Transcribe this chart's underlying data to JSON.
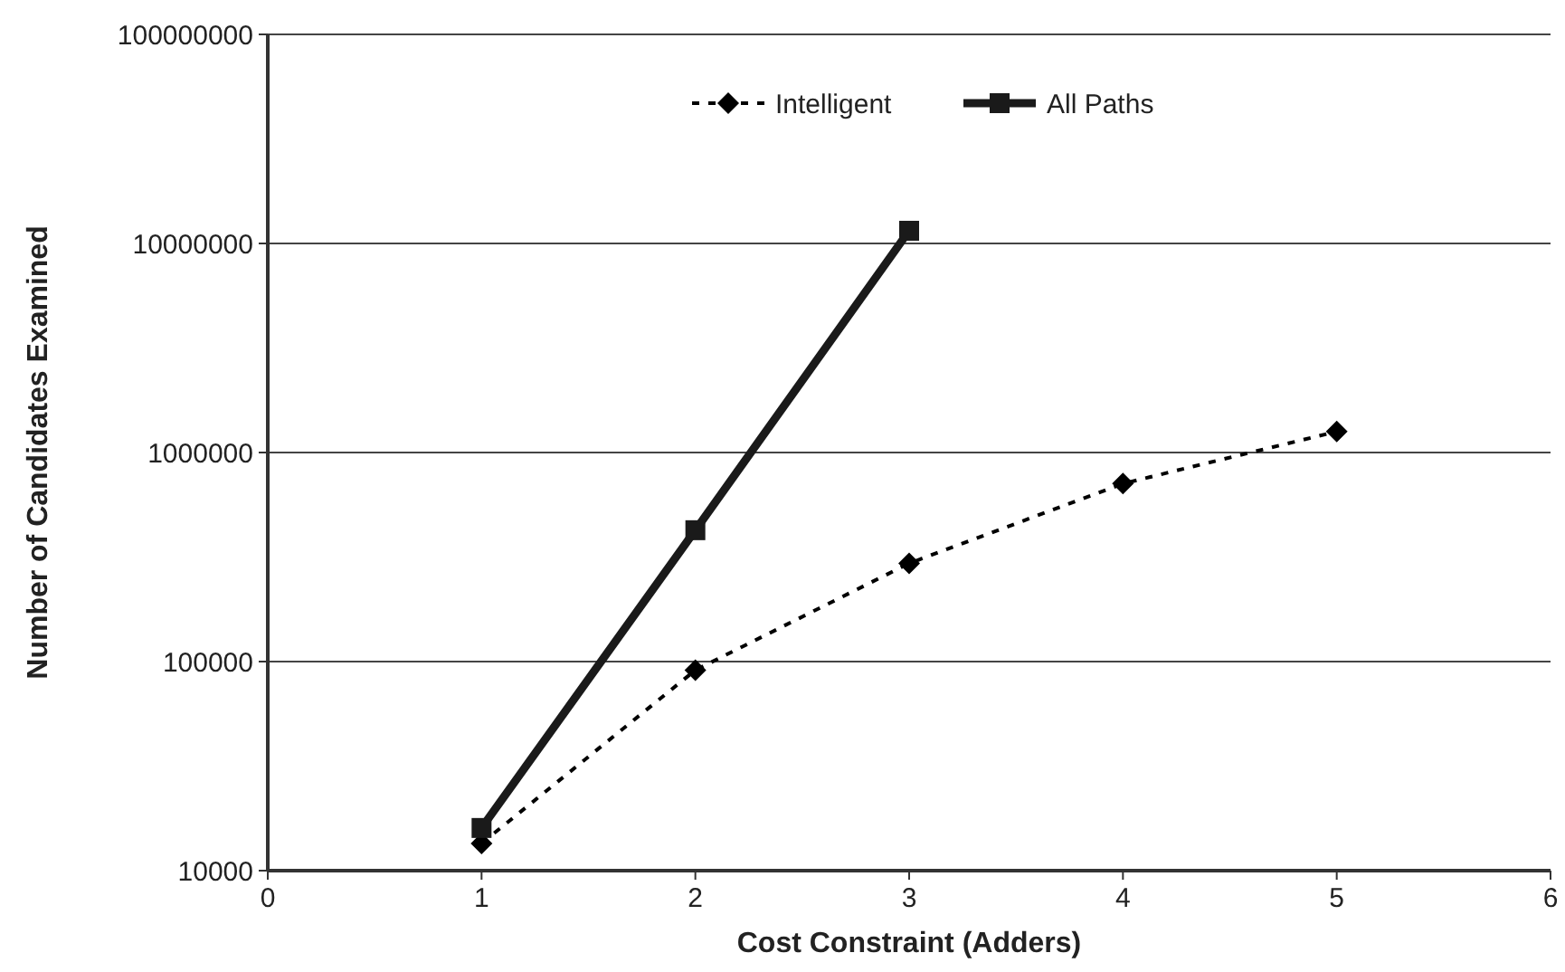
{
  "chart_data": {
    "type": "line",
    "xlabel": "Cost Constraint (Adders)",
    "ylabel": "Number of Candidates Examined",
    "x": [
      1,
      2,
      3,
      4,
      5
    ],
    "series": [
      {
        "name": "Intelligent",
        "color": "#000000",
        "values": [
          13500,
          91000,
          295000,
          710000,
          1260000
        ],
        "marker": "diamond",
        "line_style": "dotted"
      },
      {
        "name": "All Paths",
        "color": "#1a1a1a",
        "values": [
          16000,
          425000,
          11500000,
          null,
          null
        ],
        "marker": "square",
        "line_style": "solid"
      }
    ],
    "log": "y",
    "xlim": [
      0,
      6
    ],
    "xticks": [
      0,
      1,
      2,
      3,
      4,
      5,
      6
    ],
    "ylim": [
      10000,
      100000000
    ],
    "yticks": [
      10000,
      100000,
      1000000,
      10000000,
      100000000
    ],
    "grid": "y",
    "legend": "top"
  }
}
